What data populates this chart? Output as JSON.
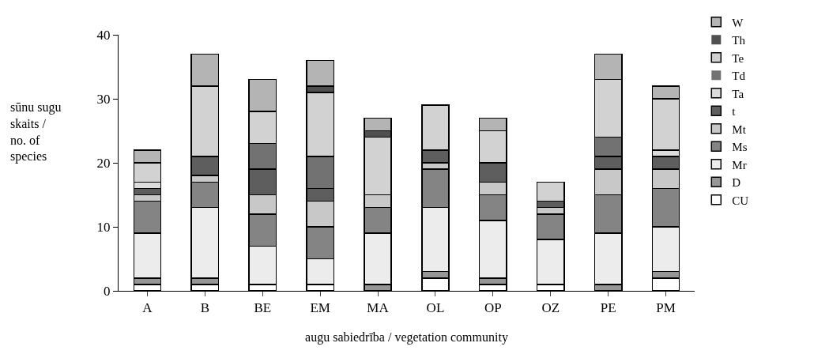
{
  "chart_data": {
    "type": "bar",
    "stacked": true,
    "xlabel": "augu sabiedrība / vegetation community",
    "ylabel": "sūnu sugu skaits / no. of species",
    "categories": [
      "A",
      "B",
      "BE",
      "EM",
      "MA",
      "OL",
      "OP",
      "OZ",
      "PE",
      "PM"
    ],
    "ylim": [
      0,
      40
    ],
    "yticks": [
      0,
      10,
      20,
      30,
      40
    ],
    "grid": false,
    "legend": "right",
    "series": [
      {
        "name": "CU",
        "color": "#ffffff",
        "values": [
          1,
          1,
          1,
          1,
          0,
          2,
          1,
          1,
          0,
          2
        ]
      },
      {
        "name": "D",
        "color": "#969696",
        "values": [
          1,
          1,
          0,
          0,
          1,
          1,
          1,
          0,
          1,
          1
        ]
      },
      {
        "name": "Mr",
        "color": "#ececec",
        "values": [
          7,
          11,
          6,
          4,
          8,
          10,
          9,
          7,
          8,
          7
        ]
      },
      {
        "name": "Ms",
        "color": "#848484",
        "values": [
          5,
          4,
          5,
          5,
          4,
          6,
          4,
          4,
          6,
          6
        ]
      },
      {
        "name": "Mt",
        "color": "#c8c8c8",
        "values": [
          1,
          1,
          3,
          4,
          2,
          1,
          2,
          1,
          4,
          3
        ]
      },
      {
        "name": "t",
        "color": "#5e5e5e",
        "values": [
          1,
          3,
          4,
          2,
          0,
          2,
          3,
          1,
          2,
          2
        ]
      },
      {
        "name": "Ta",
        "color": "#dcdcdc",
        "values": [
          1,
          0,
          0,
          0,
          0,
          0,
          0,
          0,
          0,
          1
        ]
      },
      {
        "name": "Td",
        "color": "#727272",
        "values": [
          0,
          0,
          4,
          5,
          0,
          0,
          0,
          0,
          3,
          0
        ]
      },
      {
        "name": "Te",
        "color": "#d2d2d2",
        "values": [
          3,
          11,
          5,
          10,
          9,
          7,
          5,
          3,
          9,
          8
        ]
      },
      {
        "name": "Th",
        "color": "#505050",
        "values": [
          0,
          0,
          0,
          1,
          1,
          0,
          0,
          0,
          0,
          0
        ]
      },
      {
        "name": "W",
        "color": "#b4b4b4",
        "values": [
          2,
          5,
          5,
          4,
          2,
          0,
          2,
          0,
          4,
          2
        ]
      }
    ]
  }
}
